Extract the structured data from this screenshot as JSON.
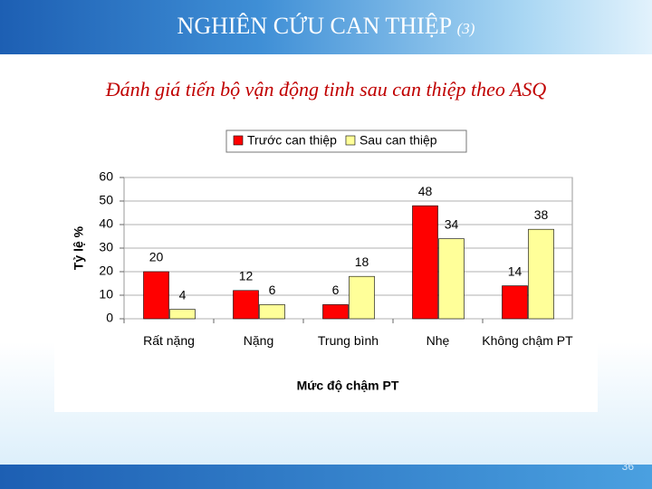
{
  "slide": {
    "title": "NGHIÊN CỨU CAN THIỆP",
    "title_note": "(3)",
    "page_number": "36"
  },
  "chart_data": {
    "type": "bar",
    "title": "Đánh giá tiến bộ vận động tinh sau can thiệp theo ASQ",
    "x_label": "Mức độ chậm PT",
    "y_label": "Tỷ lệ %",
    "categories": [
      "Rất nặng",
      "Nặng",
      "Trung bình",
      "Nhẹ",
      "Không chậm PT"
    ],
    "series": [
      {
        "name": "Trước can thiệp",
        "color": "#ff0000",
        "values": [
          20,
          12,
          6,
          48,
          14
        ]
      },
      {
        "name": "Sau can thiệp",
        "color": "#ffff99",
        "values": [
          4,
          6,
          18,
          34,
          38
        ]
      }
    ],
    "ylim": [
      0,
      60
    ],
    "yticks": [
      0,
      10,
      20,
      30,
      40,
      50,
      60
    ],
    "grid": true
  }
}
